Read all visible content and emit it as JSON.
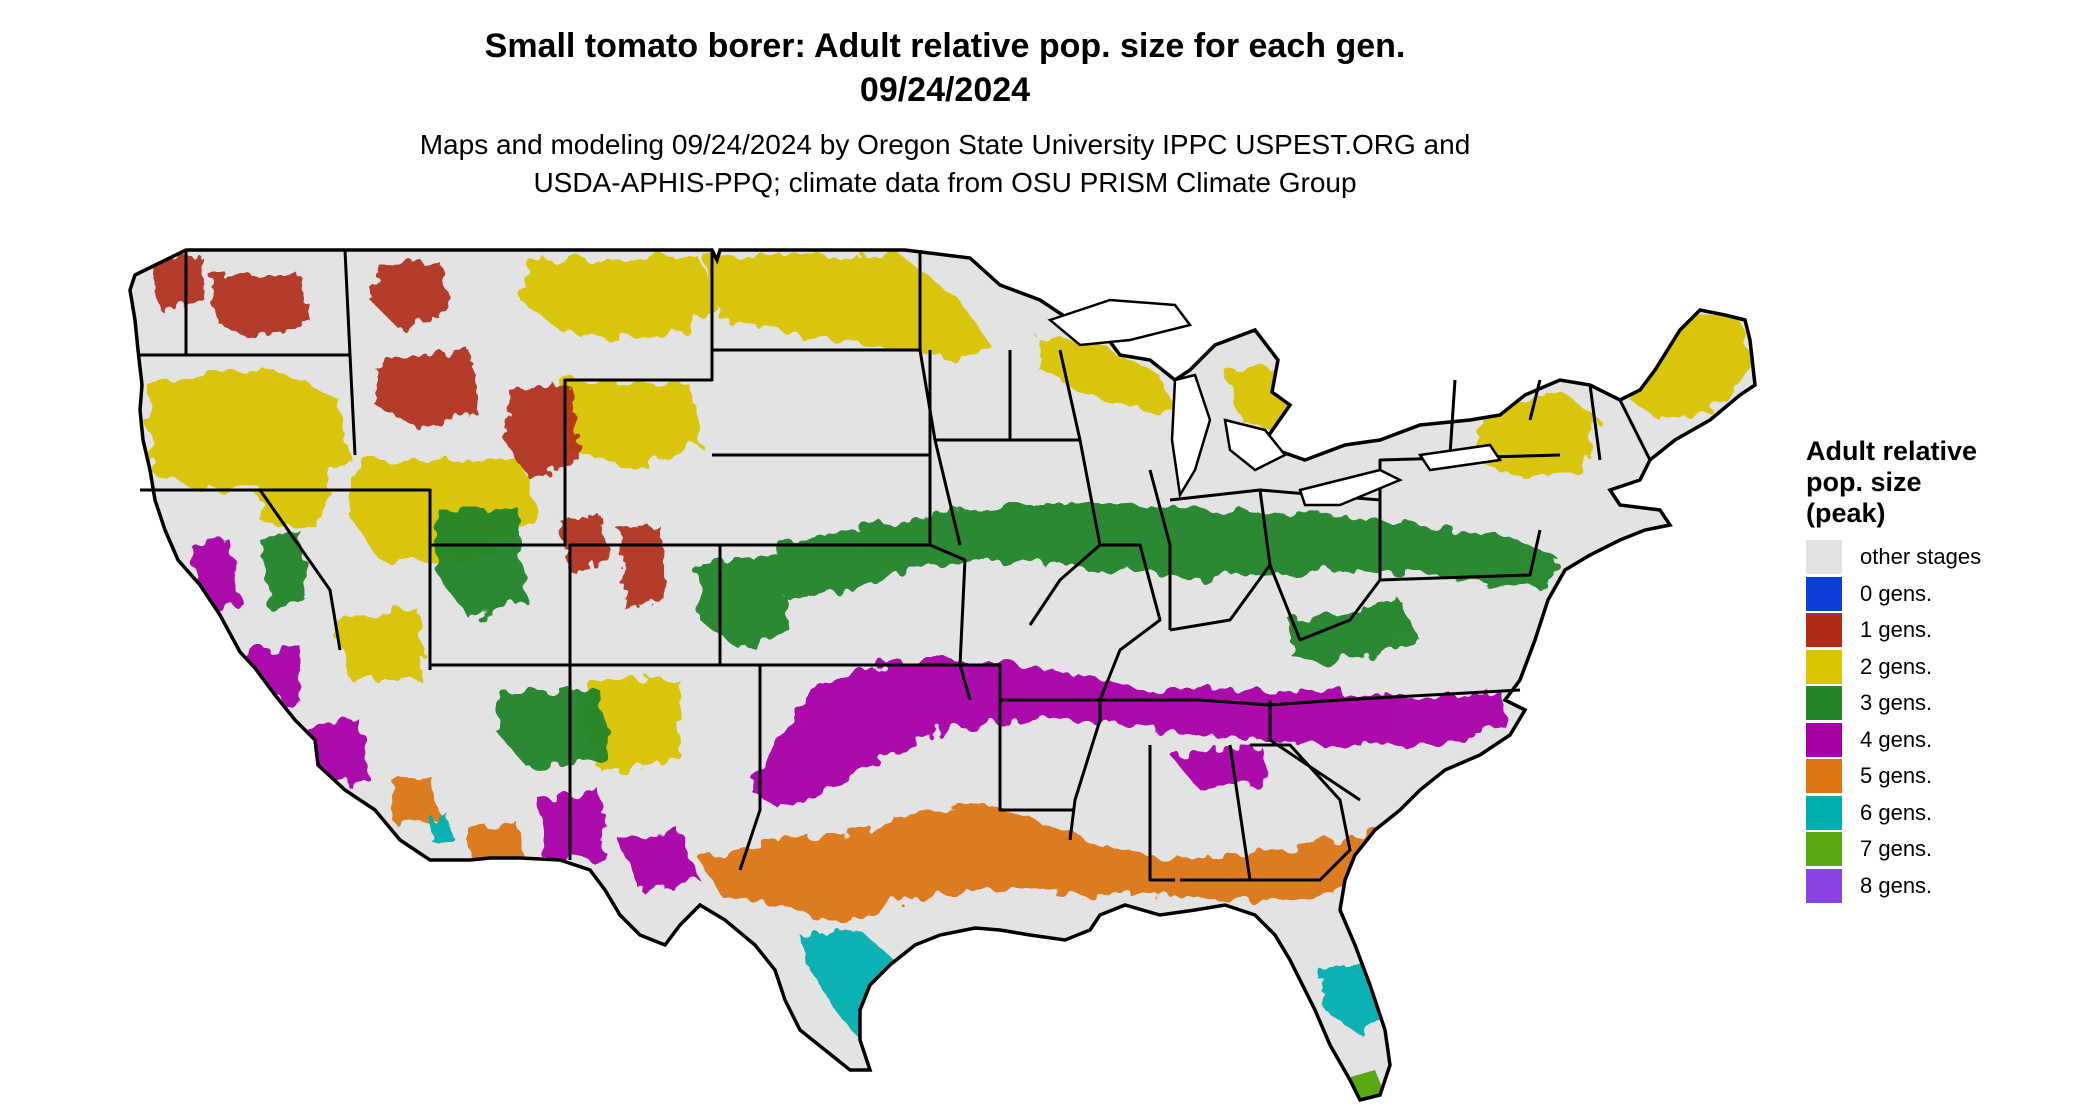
{
  "title": {
    "line1": "Small tomato borer: Adult relative pop. size for each gen.",
    "line2": "09/24/2024"
  },
  "subtitle": {
    "line1": "Maps and modeling 09/24/2024 by Oregon State University IPPC USPEST.ORG and",
    "line2": "USDA-APHIS-PPQ; climate data from OSU PRISM Climate Group"
  },
  "map": {
    "background_color": "#e3e3e3",
    "border_color": "#000000"
  },
  "legend": {
    "title_lines": [
      "Adult relative",
      "pop. size",
      "(peak)"
    ],
    "items": [
      {
        "label": "other stages",
        "color": "#e3e3e3"
      },
      {
        "label": "0 gens.",
        "color": "#0a3fd6"
      },
      {
        "label": "1 gens.",
        "color": "#b02b19"
      },
      {
        "label": "2 gens.",
        "color": "#d9c400"
      },
      {
        "label": "3 gens.",
        "color": "#23852a"
      },
      {
        "label": "4 gens.",
        "color": "#a800a8"
      },
      {
        "label": "5 gens.",
        "color": "#dc7612"
      },
      {
        "label": "6 gens.",
        "color": "#00aeb0"
      },
      {
        "label": "7 gens.",
        "color": "#5aa812"
      },
      {
        "label": "8 gens.",
        "color": "#8a42e0"
      }
    ]
  }
}
